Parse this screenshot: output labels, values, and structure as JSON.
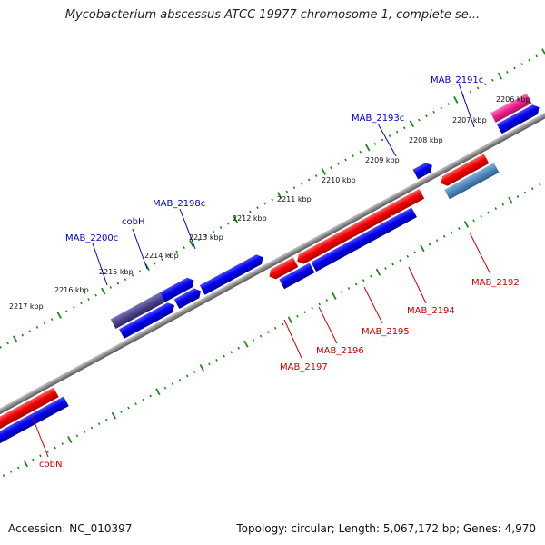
{
  "title": "Mycobacterium abscessus ATCC 19977 chromosome 1, complete se...",
  "footer": {
    "accession": "Accession: NC_010397",
    "topology": "Topology: circular; Length: 5,067,172 bp; Genes: 4,970"
  },
  "colors": {
    "backbone": "#8c8c8c",
    "tick": "#1a8a1a",
    "forward_gene": "#e00000",
    "reverse_gene": "#0000dd",
    "label_forward": "#cc0000",
    "label_reverse": "#0000cc",
    "highlight_pink": "#e8208a",
    "highlight_steel": "#4f86b8",
    "highlight_slate": "#4a4488"
  },
  "kbp_labels": [
    "2206 kbp",
    "2207 kbp",
    "2208 kbp",
    "2209 kbp",
    "2210 kbp",
    "2211 kbp",
    "2212 kbp",
    "2213 kbp",
    "2214 kbp",
    "2215 kbp",
    "2216 kbp",
    "2217 kbp"
  ],
  "upper_gene_labels": [
    "MAB_2191c",
    "MAB_2193c",
    "MAB_2198c",
    "cobH",
    "MAB_2200c"
  ],
  "lower_gene_labels": [
    "MAB_2192",
    "MAB_2194",
    "MAB_2195",
    "MAB_2196",
    "MAB_2197",
    "cobN"
  ]
}
